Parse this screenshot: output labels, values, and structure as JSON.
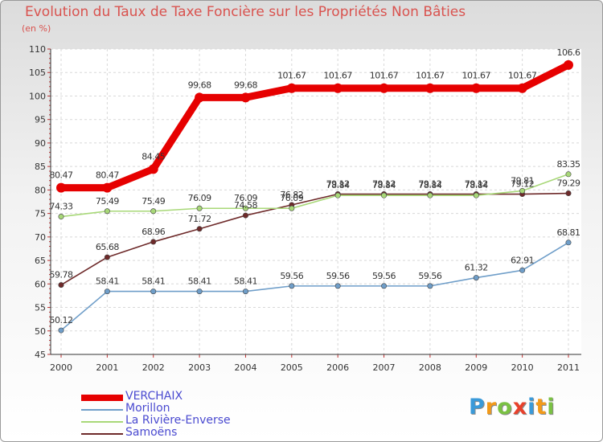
{
  "chart_data": {
    "type": "line",
    "title": "Evolution du Taux de Taxe Foncière sur les Propriétés Non Bâties",
    "ylabel": "(en %)",
    "xlabel": "",
    "ylim": [
      45,
      110
    ],
    "yticks": [
      "45",
      "50",
      "55",
      "60",
      "65",
      "70",
      "75",
      "80",
      "85",
      "90",
      "95",
      "100",
      "105",
      "110"
    ],
    "categories": [
      "2000",
      "2001",
      "2002",
      "2003",
      "2004",
      "2005",
      "2006",
      "2007",
      "2008",
      "2009",
      "2010",
      "2011"
    ],
    "grid": true,
    "legend_position": "bottom-left",
    "series": [
      {
        "name": "VERCHAIX",
        "color": "#e60000",
        "values": [
          80.47,
          80.47,
          84.45,
          99.68,
          99.68,
          101.67,
          101.67,
          101.67,
          101.67,
          101.67,
          101.67,
          106.6
        ],
        "labels": [
          "80.47",
          "80.47",
          "84.45",
          "99.68",
          "99.68",
          "101.67",
          "101.67",
          "101.67",
          "101.67",
          "101.67",
          "101.67",
          "106.6"
        ]
      },
      {
        "name": "Morillon",
        "color": "#6f9ec9",
        "values": [
          50.12,
          58.41,
          58.41,
          58.41,
          58.41,
          59.56,
          59.56,
          59.56,
          59.56,
          61.32,
          62.91,
          68.81
        ],
        "labels": [
          "50.12",
          "58.41",
          "58.41",
          "58.41",
          "58.41",
          "59.56",
          "59.56",
          "59.56",
          "59.56",
          "61.32",
          "62.91",
          "68.81"
        ]
      },
      {
        "name": "La Rivière-Enverse",
        "color": "#a8d878",
        "values": [
          74.33,
          75.49,
          75.49,
          76.09,
          76.09,
          76.09,
          78.84,
          78.84,
          78.84,
          78.84,
          79.81,
          83.35
        ],
        "labels": [
          "74.33",
          "75.49",
          "75.49",
          "76.09",
          "76.09",
          "76.09",
          "78.84",
          "78.84",
          "78.84",
          "78.84",
          "79.81",
          "83.35"
        ]
      },
      {
        "name": "Samoëns",
        "color": "#6e2a2a",
        "values": [
          59.78,
          65.68,
          68.96,
          71.72,
          74.58,
          76.82,
          79.12,
          79.12,
          79.12,
          79.12,
          79.12,
          79.29
        ],
        "labels": [
          "59.78",
          "65.68",
          "68.96",
          "71.72",
          "74.58",
          "76.82",
          "79.12",
          "79.12",
          "79.12",
          "79.12",
          "79.12",
          "79.29"
        ]
      }
    ]
  },
  "legend": {
    "items": [
      {
        "label": "VERCHAIX",
        "color": "#e60000"
      },
      {
        "label": "Morillon",
        "color": "#6f9ec9"
      },
      {
        "label": "La Rivière-Enverse",
        "color": "#a8d878"
      },
      {
        "label": "Samoëns",
        "color": "#6e2a2a"
      }
    ]
  },
  "logo": {
    "letters": [
      "P",
      "r",
      "o",
      "x",
      "i",
      "t",
      "i"
    ],
    "colors": [
      "#3a9ad9",
      "#f29a1a",
      "#7ac143",
      "#e8412c",
      "#3a9ad9",
      "#f29a1a",
      "#7ac143"
    ]
  }
}
